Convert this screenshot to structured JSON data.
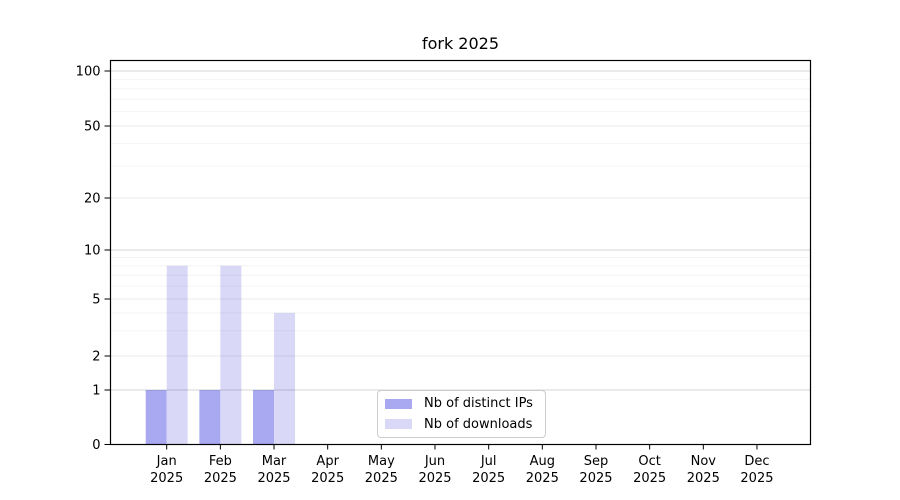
{
  "chart_data": {
    "type": "bar",
    "title": "fork 2025",
    "categories": [
      "Jan",
      "Feb",
      "Mar",
      "Apr",
      "May",
      "Jun",
      "Jul",
      "Aug",
      "Sep",
      "Oct",
      "Nov",
      "Dec"
    ],
    "x_year_label": "2025",
    "series": [
      {
        "name": "Nb of distinct IPs",
        "color": "#a9a9f2",
        "values": [
          1,
          1,
          1,
          0,
          0,
          0,
          0,
          0,
          0,
          0,
          0,
          0
        ]
      },
      {
        "name": "Nb of downloads",
        "color": "#d9d9f7",
        "values": [
          8,
          8,
          4,
          0,
          0,
          0,
          0,
          0,
          0,
          0,
          0,
          0
        ]
      }
    ],
    "y_axis": {
      "scale": "log-like",
      "ticks": [
        0,
        1,
        2,
        5,
        10,
        20,
        50,
        100
      ],
      "major_gridlines": [
        1,
        10,
        100
      ],
      "light_gridlines": [
        2,
        5,
        20,
        50
      ],
      "minor_gridlines": [
        3,
        4,
        6,
        7,
        8,
        9,
        30,
        40,
        60,
        70,
        80,
        90
      ],
      "range": [
        0,
        140
      ]
    },
    "grid": true,
    "legend_position": "bottom-center"
  },
  "colors": {
    "bar_ips": "#a9a9f2",
    "bar_downloads": "#d9d9f7",
    "grid_major": "rgba(0,0,0,0.17)",
    "grid_light": "rgba(0,0,0,0.08)",
    "grid_minor": "rgba(0,0,0,0.045)",
    "spine": "#000000",
    "legend_border": "#cccccc",
    "text": "#000000"
  }
}
